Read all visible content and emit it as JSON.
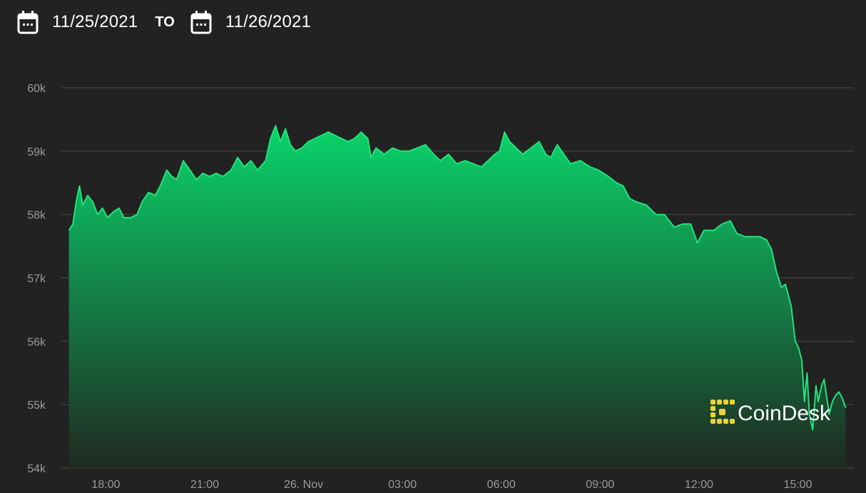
{
  "header": {
    "start_date": "11/25/2021",
    "separator": "TO",
    "end_date": "11/26/2021",
    "start_icon": "calendar-icon",
    "end_icon": "calendar-icon"
  },
  "logo": {
    "text": "CoinDesk",
    "color": "#e9d33a"
  },
  "colors": {
    "line": "#22e27a",
    "fill_top": "#0ad46a",
    "fill_bottom": "#1f2a22",
    "grid": "#4a4a4a",
    "background": "#222222"
  },
  "chart_data": {
    "type": "area",
    "title": "",
    "xlabel": "",
    "ylabel": "",
    "ylim": [
      54000,
      60000
    ],
    "yticks": [
      54000,
      55000,
      56000,
      57000,
      58000,
      59000,
      60000
    ],
    "ytick_labels": [
      "54k",
      "55k",
      "56k",
      "57k",
      "58k",
      "59k",
      "60k"
    ],
    "xlim_hours": [
      16.65,
      40.7
    ],
    "xticks": [
      {
        "hour": 18,
        "label": "18:00"
      },
      {
        "hour": 21,
        "label": "21:00"
      },
      {
        "hour": 24,
        "label": "26. Nov"
      },
      {
        "hour": 27,
        "label": "03:00"
      },
      {
        "hour": 30,
        "label": "06:00"
      },
      {
        "hour": 33,
        "label": "09:00"
      },
      {
        "hour": 36,
        "label": "12:00"
      },
      {
        "hour": 39,
        "label": "15:00"
      }
    ],
    "grid": true,
    "series": [
      {
        "values": [
          [
            16.88,
            57750
          ],
          [
            17.0,
            57850
          ],
          [
            17.1,
            58200
          ],
          [
            17.2,
            58450
          ],
          [
            17.3,
            58150
          ],
          [
            17.45,
            58300
          ],
          [
            17.6,
            58200
          ],
          [
            17.75,
            58000
          ],
          [
            17.9,
            58100
          ],
          [
            18.05,
            57950
          ],
          [
            18.25,
            58050
          ],
          [
            18.4,
            58100
          ],
          [
            18.55,
            57950
          ],
          [
            18.75,
            57950
          ],
          [
            18.95,
            58000
          ],
          [
            19.1,
            58200
          ],
          [
            19.3,
            58350
          ],
          [
            19.5,
            58300
          ],
          [
            19.65,
            58450
          ],
          [
            19.85,
            58700
          ],
          [
            20.0,
            58600
          ],
          [
            20.15,
            58550
          ],
          [
            20.35,
            58850
          ],
          [
            20.55,
            58700
          ],
          [
            20.75,
            58550
          ],
          [
            20.95,
            58650
          ],
          [
            21.15,
            58600
          ],
          [
            21.35,
            58650
          ],
          [
            21.55,
            58600
          ],
          [
            21.8,
            58700
          ],
          [
            22.0,
            58900
          ],
          [
            22.2,
            58750
          ],
          [
            22.4,
            58850
          ],
          [
            22.6,
            58700
          ],
          [
            22.85,
            58850
          ],
          [
            23.0,
            59200
          ],
          [
            23.15,
            59400
          ],
          [
            23.3,
            59150
          ],
          [
            23.45,
            59350
          ],
          [
            23.6,
            59100
          ],
          [
            23.75,
            59000
          ],
          [
            23.95,
            59050
          ],
          [
            24.15,
            59150
          ],
          [
            24.35,
            59200
          ],
          [
            24.55,
            59250
          ],
          [
            24.75,
            59300
          ],
          [
            24.95,
            59250
          ],
          [
            25.15,
            59200
          ],
          [
            25.35,
            59150
          ],
          [
            25.55,
            59200
          ],
          [
            25.75,
            59300
          ],
          [
            25.95,
            59200
          ],
          [
            26.05,
            58900
          ],
          [
            26.2,
            59050
          ],
          [
            26.45,
            58950
          ],
          [
            26.7,
            59050
          ],
          [
            26.95,
            59000
          ],
          [
            27.2,
            59000
          ],
          [
            27.45,
            59050
          ],
          [
            27.7,
            59100
          ],
          [
            27.95,
            58950
          ],
          [
            28.15,
            58850
          ],
          [
            28.4,
            58950
          ],
          [
            28.65,
            58800
          ],
          [
            28.9,
            58850
          ],
          [
            29.15,
            58800
          ],
          [
            29.4,
            58750
          ],
          [
            29.6,
            58850
          ],
          [
            29.8,
            58950
          ],
          [
            29.95,
            59000
          ],
          [
            30.1,
            59300
          ],
          [
            30.25,
            59150
          ],
          [
            30.45,
            59050
          ],
          [
            30.65,
            58950
          ],
          [
            30.9,
            59050
          ],
          [
            31.15,
            59150
          ],
          [
            31.35,
            58950
          ],
          [
            31.5,
            58900
          ],
          [
            31.7,
            59100
          ],
          [
            31.9,
            58950
          ],
          [
            32.1,
            58800
          ],
          [
            32.4,
            58850
          ],
          [
            32.7,
            58750
          ],
          [
            32.95,
            58700
          ],
          [
            33.25,
            58600
          ],
          [
            33.5,
            58500
          ],
          [
            33.7,
            58450
          ],
          [
            33.9,
            58250
          ],
          [
            34.1,
            58200
          ],
          [
            34.4,
            58150
          ],
          [
            34.7,
            58000
          ],
          [
            34.95,
            58000
          ],
          [
            35.25,
            57800
          ],
          [
            35.5,
            57850
          ],
          [
            35.75,
            57850
          ],
          [
            35.95,
            57550
          ],
          [
            36.15,
            57750
          ],
          [
            36.45,
            57750
          ],
          [
            36.7,
            57850
          ],
          [
            36.95,
            57900
          ],
          [
            37.15,
            57700
          ],
          [
            37.4,
            57650
          ],
          [
            37.6,
            57650
          ],
          [
            37.85,
            57650
          ],
          [
            38.05,
            57600
          ],
          [
            38.2,
            57450
          ],
          [
            38.35,
            57100
          ],
          [
            38.5,
            56850
          ],
          [
            38.62,
            56900
          ],
          [
            38.7,
            56750
          ],
          [
            38.8,
            56550
          ],
          [
            38.92,
            56000
          ],
          [
            39.02,
            55900
          ],
          [
            39.12,
            55700
          ],
          [
            39.2,
            55050
          ],
          [
            39.28,
            55500
          ],
          [
            39.35,
            54850
          ],
          [
            39.45,
            54600
          ],
          [
            39.55,
            55300
          ],
          [
            39.62,
            55050
          ],
          [
            39.72,
            55300
          ],
          [
            39.8,
            55400
          ],
          [
            39.88,
            55100
          ],
          [
            39.95,
            54850
          ],
          [
            40.05,
            55050
          ],
          [
            40.15,
            55150
          ],
          [
            40.25,
            55200
          ],
          [
            40.35,
            55100
          ],
          [
            40.45,
            54950
          ]
        ]
      }
    ]
  }
}
